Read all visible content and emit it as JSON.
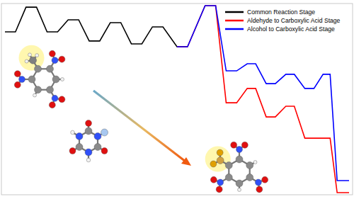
{
  "chart_data": {
    "type": "line",
    "x": [
      5,
      20,
      35,
      50,
      65,
      80,
      95,
      110,
      125,
      140,
      155,
      170,
      185,
      200,
      215,
      230,
      250,
      265,
      290,
      305,
      320,
      335,
      350,
      362,
      377,
      390,
      405,
      417,
      432,
      445,
      458,
      468,
      478,
      495
    ],
    "series": [
      {
        "name": "Common Reaction Stage",
        "color": "#000000",
        "values": [
          85.2,
          85.2,
          98.1,
          98.1,
          85.2,
          85.2,
          91.5,
          91.5,
          80.4,
          80.4,
          90,
          90,
          78.9,
          78.9,
          87.8,
          87.8,
          77.4,
          77.4,
          null,
          null,
          null,
          null,
          null,
          null,
          null,
          null,
          null,
          null,
          null,
          null,
          null,
          null,
          null,
          null
        ]
      },
      {
        "name": "Aldehyde to Carboxylic Acid Stage",
        "color": "#ff0000",
        "values": [
          null,
          null,
          null,
          null,
          null,
          null,
          null,
          null,
          null,
          null,
          null,
          null,
          null,
          null,
          null,
          null,
          77.4,
          77.4,
          98.9,
          98.9,
          48.1,
          48.1,
          55.6,
          55.6,
          40.7,
          40.7,
          46.3,
          46.3,
          29.6,
          29.6,
          29.6,
          29.6,
          1.1,
          1.1
        ]
      },
      {
        "name": "Alcohol to Carboxylic Acid Stage",
        "color": "#0000ff",
        "values": [
          null,
          null,
          null,
          null,
          null,
          null,
          null,
          null,
          null,
          null,
          null,
          null,
          null,
          null,
          null,
          null,
          77.4,
          77.4,
          98.9,
          98.9,
          64.8,
          64.8,
          68.5,
          68.5,
          58.1,
          58.1,
          63,
          63,
          55.6,
          55.6,
          63,
          63,
          7.4,
          7.4
        ]
      }
    ],
    "xlim": [
      0,
      500
    ],
    "ylim": [
      0,
      100
    ],
    "tick_labels": false,
    "grid": false,
    "legend": "top-right",
    "line_style": "solid"
  }
}
